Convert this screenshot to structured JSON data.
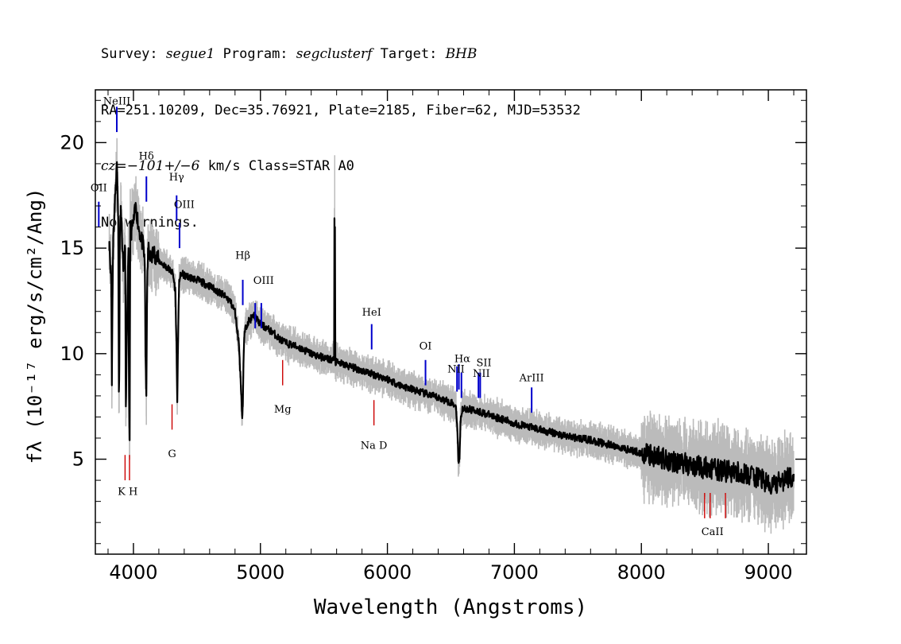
{
  "header": {
    "line1": {
      "survey_label": "Survey:",
      "survey": "segue1",
      "program_label": "Program:",
      "program": "segclusterf",
      "target_label": "Target:",
      "target": "BHB"
    },
    "line2": "RA=251.10209, Dec=35.76921, Plate=2185, Fiber=62, MJD=53532",
    "line3": {
      "cz": "cz=−101+/−6",
      "rest": " km/s Class=STAR A0"
    },
    "line4": "No warnings."
  },
  "chart_data": {
    "type": "line",
    "xlabel": "Wavelength (Angstroms)",
    "ylabel": "fλ (10⁻¹⁷ erg/s/cm²/Ang)",
    "xlim": [
      3700,
      9300
    ],
    "ylim": [
      0.5,
      22.5
    ],
    "x_ticks": [
      4000,
      5000,
      6000,
      7000,
      8000,
      9000
    ],
    "x_tick_labels": [
      "4000",
      "5000",
      "6000",
      "7000",
      "8000",
      "9000"
    ],
    "y_ticks": [
      5,
      10,
      15,
      20
    ],
    "y_tick_labels": [
      "5",
      "10",
      "15",
      "20"
    ],
    "grid": false,
    "series": [
      {
        "role": "flux",
        "color": "#000000",
        "x": [
          3810,
          3825,
          3830,
          3835,
          3840,
          3850,
          3860,
          3870,
          3880,
          3885,
          3889,
          3893,
          3900,
          3920,
          3935,
          3940,
          3960,
          3965,
          3970,
          3975,
          3985,
          4000,
          4020,
          4040,
          4060,
          4080,
          4090,
          4095,
          4102,
          4108,
          4115,
          4130,
          4160,
          4200,
          4240,
          4280,
          4310,
          4330,
          4340,
          4345,
          4350,
          4360,
          4380,
          4400,
          4500,
          4600,
          4700,
          4760,
          4800,
          4830,
          4850,
          4856,
          4861,
          4866,
          4875,
          4900,
          4950,
          5000,
          5050,
          5100,
          5150,
          5200,
          5300,
          5400,
          5500,
          5580,
          5583,
          5585,
          5587,
          5590,
          5700,
          5800,
          5900,
          6000,
          6100,
          6200,
          6300,
          6400,
          6500,
          6540,
          6550,
          6558,
          6563,
          6568,
          6575,
          6590,
          6700,
          6800,
          6900,
          7000,
          7200,
          7400,
          7600,
          7800,
          8000,
          8200,
          8400,
          8600,
          8800,
          8950,
          9000,
          9100,
          9200
        ],
        "y": [
          15.3,
          13.5,
          8.5,
          12.5,
          15.5,
          16.5,
          18.0,
          19.0,
          16.5,
          8.2,
          9.5,
          15.5,
          17.0,
          14.0,
          15.0,
          7.5,
          15.0,
          8.0,
          5.9,
          16.0,
          15.8,
          16.2,
          17.0,
          16.0,
          15.5,
          15.0,
          14.0,
          10.0,
          8.0,
          13.0,
          15.0,
          14.5,
          14.8,
          14.4,
          14.2,
          14.0,
          13.8,
          13.0,
          10.0,
          7.7,
          10.0,
          13.5,
          13.8,
          13.7,
          13.5,
          13.2,
          12.8,
          12.5,
          12.0,
          10.5,
          8.0,
          7.0,
          7.5,
          9.5,
          11.0,
          11.5,
          11.8,
          11.4,
          11.2,
          11.0,
          10.7,
          10.5,
          10.3,
          10.0,
          9.8,
          9.7,
          16.3,
          9.7,
          16.0,
          9.6,
          9.4,
          9.2,
          9.0,
          8.8,
          8.5,
          8.3,
          8.1,
          7.9,
          7.7,
          7.5,
          6.5,
          5.0,
          4.9,
          5.0,
          6.8,
          7.4,
          7.3,
          7.1,
          6.9,
          6.7,
          6.4,
          6.1,
          5.9,
          5.6,
          5.3,
          5.0,
          4.7,
          4.5,
          4.3,
          4.1,
          3.7,
          3.9,
          4.3
        ]
      }
    ],
    "line_markers": {
      "emission": [
        {
          "label": "OII",
          "x": 3727,
          "y": 16.0
        },
        {
          "label": "NeIII",
          "x": 3869,
          "y": 20.5
        },
        {
          "label": "Hδ",
          "x": 4102,
          "y": 17.2
        },
        {
          "label": "Hγ",
          "x": 4340,
          "y": 16.3
        },
        {
          "label": "OIII",
          "x": 4363,
          "y": 15.0
        },
        {
          "label": "Hβ",
          "x": 4861,
          "y": 12.3
        },
        {
          "label": "OIII",
          "x": 4959,
          "y": 11.2
        },
        {
          "label": "OIII",
          "x": 5007,
          "y": 11.2
        },
        {
          "label": "HeI",
          "x": 5876,
          "y": 10.2
        },
        {
          "label": "OI",
          "x": 6300,
          "y": 8.5
        },
        {
          "label": "NII",
          "x": 6548,
          "y": 8.2
        },
        {
          "label": "Hα",
          "x": 6563,
          "y": 8.3
        },
        {
          "label": "NII",
          "x": 6583,
          "y": 7.9
        },
        {
          "label": "SII",
          "x": 6717,
          "y": 7.9
        },
        {
          "label": "SII",
          "x": 6731,
          "y": 7.9
        },
        {
          "label": "ArIII",
          "x": 7136,
          "y": 7.2
        }
      ],
      "absorption": [
        {
          "label": "K",
          "x": 3934,
          "y": 4.0
        },
        {
          "label": "H",
          "x": 3969,
          "y": 4.0
        },
        {
          "label": "G",
          "x": 4304,
          "y": 6.4
        },
        {
          "label": "Mg",
          "x": 5175,
          "y": 8.5
        },
        {
          "label": "Na",
          "x": 5894,
          "y": 6.6
        },
        {
          "label": "CaII",
          "x": 8498,
          "y": 2.2
        },
        {
          "label": "CaII",
          "x": 8542,
          "y": 2.2
        },
        {
          "label": "CaII",
          "x": 8662,
          "y": 2.2
        }
      ]
    },
    "marker_labels": [
      {
        "text": "OII",
        "x": 3727,
        "y": 17.7
      },
      {
        "text": "NeIII",
        "x": 3869,
        "y": 21.8
      },
      {
        "text": "Hδ",
        "x": 4102,
        "y": 19.2
      },
      {
        "text": "Hγ",
        "x": 4340,
        "y": 18.2
      },
      {
        "text": "OIII",
        "x": 4400,
        "y": 16.9
      },
      {
        "text": "Hβ",
        "x": 4861,
        "y": 14.5
      },
      {
        "text": "OIII",
        "x": 5025,
        "y": 13.3
      },
      {
        "text": "HeI",
        "x": 5876,
        "y": 11.8
      },
      {
        "text": "OI",
        "x": 6300,
        "y": 10.2
      },
      {
        "text": "NII",
        "x": 6540,
        "y": 9.1
      },
      {
        "text": "Hα",
        "x": 6590,
        "y": 9.6
      },
      {
        "text": "SII",
        "x": 6760,
        "y": 9.4
      },
      {
        "text": "NII",
        "x": 6740,
        "y": 8.9
      },
      {
        "text": "ArIII",
        "x": 7136,
        "y": 8.7
      },
      {
        "text": "K H",
        "x": 3955,
        "y": 3.3
      },
      {
        "text": "G",
        "x": 4304,
        "y": 5.1
      },
      {
        "text": "Mg",
        "x": 5175,
        "y": 7.2
      },
      {
        "text": "Na  D",
        "x": 5894,
        "y": 5.5
      },
      {
        "text": "CaII",
        "x": 8560,
        "y": 1.4
      }
    ],
    "colors": {
      "flux": "#000000",
      "noise": "#bbbbbb",
      "emission_marker": "#0000cc",
      "absorption_marker": "#cc0000"
    }
  }
}
